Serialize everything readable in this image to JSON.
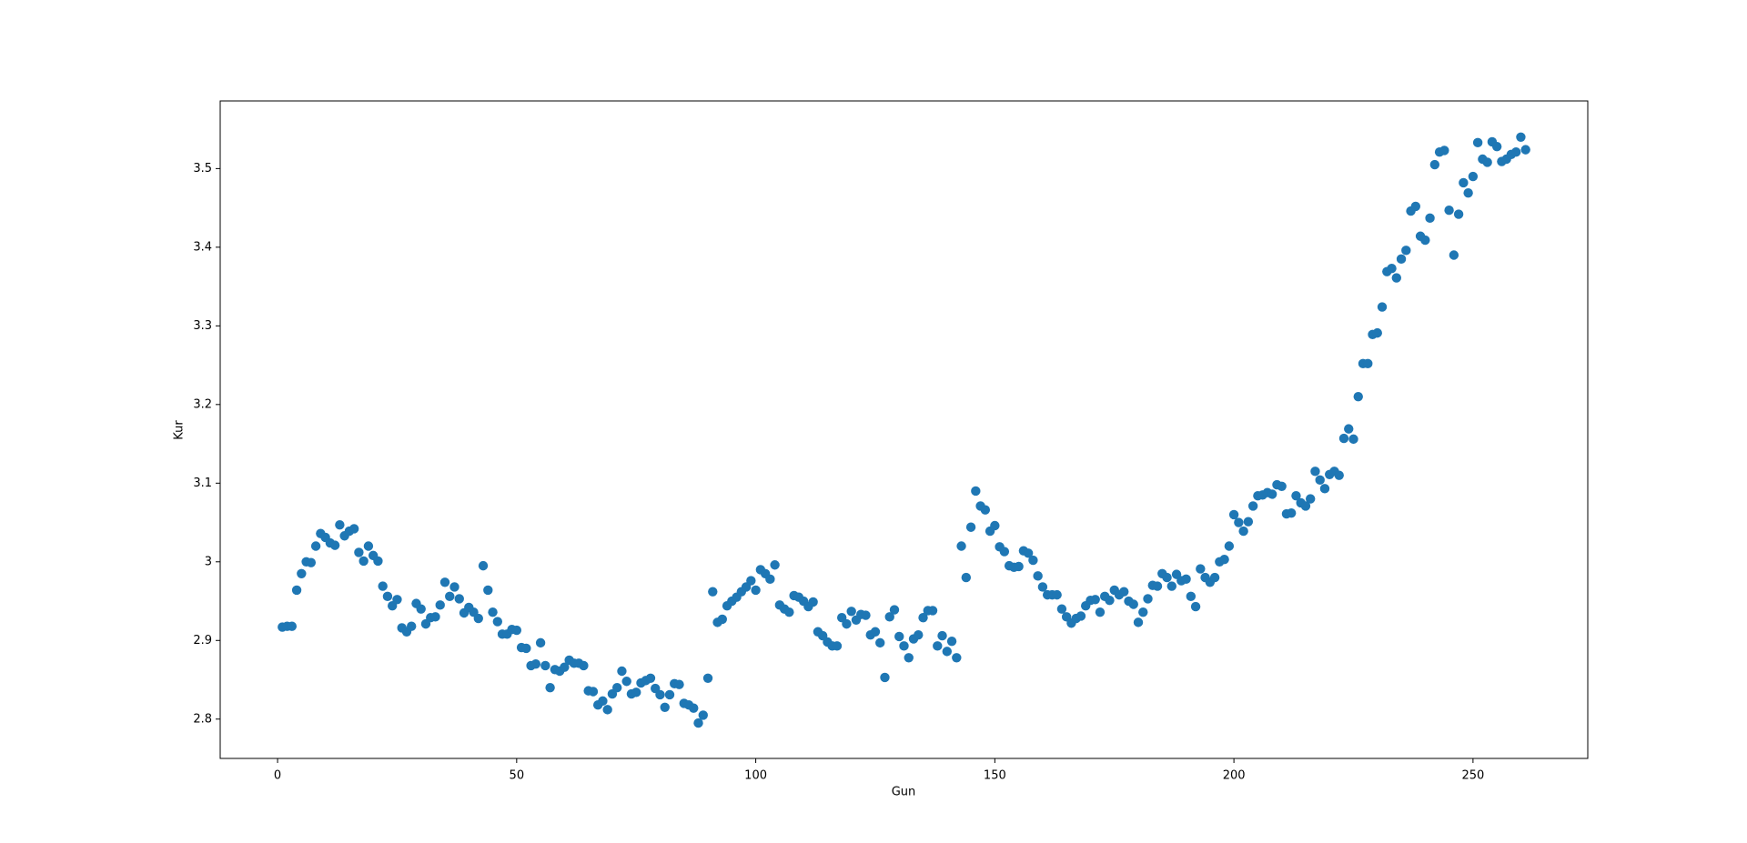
{
  "chart_data": {
    "type": "scatter",
    "x_label": "Gun",
    "y_label": "Kur",
    "color": "#1f77b4",
    "xlim": [
      -12,
      274
    ],
    "ylim": [
      2.75,
      3.586
    ],
    "xticks": [
      0,
      50,
      100,
      150,
      200,
      250
    ],
    "yticks": [
      2.8,
      2.9,
      3.0,
      3.1,
      3.2,
      3.3,
      3.4,
      3.5
    ],
    "x": [
      1,
      2,
      3,
      4,
      5,
      6,
      7,
      8,
      9,
      10,
      11,
      12,
      13,
      14,
      15,
      16,
      17,
      18,
      19,
      20,
      21,
      22,
      23,
      24,
      25,
      26,
      27,
      28,
      29,
      30,
      31,
      32,
      33,
      34,
      35,
      36,
      37,
      38,
      39,
      40,
      41,
      42,
      43,
      44,
      45,
      46,
      47,
      48,
      49,
      50,
      51,
      52,
      53,
      54,
      55,
      56,
      57,
      58,
      59,
      60,
      61,
      62,
      63,
      64,
      65,
      66,
      67,
      68,
      69,
      70,
      71,
      72,
      73,
      74,
      75,
      76,
      77,
      78,
      79,
      80,
      81,
      82,
      83,
      84,
      85,
      86,
      87,
      88,
      89,
      90,
      91,
      92,
      93,
      94,
      95,
      96,
      97,
      98,
      99,
      100,
      101,
      102,
      103,
      104,
      105,
      106,
      107,
      108,
      109,
      110,
      111,
      112,
      113,
      114,
      115,
      116,
      117,
      118,
      119,
      120,
      121,
      122,
      123,
      124,
      125,
      126,
      127,
      128,
      129,
      130,
      131,
      132,
      133,
      134,
      135,
      136,
      137,
      138,
      139,
      140,
      141,
      142,
      143,
      144,
      145,
      146,
      147,
      148,
      149,
      150,
      151,
      152,
      153,
      154,
      155,
      156,
      157,
      158,
      159,
      160,
      161,
      162,
      163,
      164,
      165,
      166,
      167,
      168,
      169,
      170,
      171,
      172,
      173,
      174,
      175,
      176,
      177,
      178,
      179,
      180,
      181,
      182,
      183,
      184,
      185,
      186,
      187,
      188,
      189,
      190,
      191,
      192,
      193,
      194,
      195,
      196,
      197,
      198,
      199,
      200,
      201,
      202,
      203,
      204,
      205,
      206,
      207,
      208,
      209,
      210,
      211,
      212,
      213,
      214,
      215,
      216,
      217,
      218,
      219,
      220,
      221,
      222,
      223,
      224,
      225,
      226,
      227,
      228,
      229,
      230,
      231,
      232,
      233,
      234,
      235,
      236,
      237,
      238,
      239,
      240,
      241,
      242,
      243,
      244,
      245,
      246,
      247,
      248,
      249,
      250,
      251,
      252,
      253,
      254,
      255,
      256,
      257,
      258,
      259,
      260,
      261
    ],
    "values": [
      2.917,
      2.918,
      2.918,
      2.964,
      2.985,
      3.0,
      2.999,
      3.02,
      3.036,
      3.031,
      3.024,
      3.021,
      3.047,
      3.033,
      3.039,
      3.042,
      3.012,
      3.001,
      3.02,
      3.008,
      3.001,
      2.969,
      2.956,
      2.944,
      2.952,
      2.916,
      2.911,
      2.918,
      2.947,
      2.94,
      2.921,
      2.929,
      2.93,
      2.945,
      2.974,
      2.956,
      2.968,
      2.953,
      2.935,
      2.942,
      2.936,
      2.928,
      2.995,
      2.964,
      2.936,
      2.924,
      2.908,
      2.908,
      2.914,
      2.913,
      2.891,
      2.89,
      2.868,
      2.87,
      2.897,
      2.868,
      2.84,
      2.863,
      2.861,
      2.866,
      2.875,
      2.871,
      2.871,
      2.868,
      2.836,
      2.835,
      2.818,
      2.823,
      2.812,
      2.832,
      2.84,
      2.861,
      2.848,
      2.832,
      2.834,
      2.846,
      2.849,
      2.852,
      2.839,
      2.831,
      2.815,
      2.831,
      2.845,
      2.844,
      2.82,
      2.818,
      2.814,
      2.795,
      2.805,
      2.852,
      2.962,
      2.923,
      2.927,
      2.944,
      2.95,
      2.955,
      2.962,
      2.968,
      2.976,
      2.964,
      2.99,
      2.985,
      2.978,
      2.996,
      2.945,
      2.94,
      2.936,
      2.957,
      2.955,
      2.95,
      2.943,
      2.949,
      2.911,
      2.906,
      2.898,
      2.893,
      2.893,
      2.929,
      2.921,
      2.937,
      2.926,
      2.933,
      2.932,
      2.907,
      2.911,
      2.897,
      2.853,
      2.93,
      2.939,
      2.905,
      2.893,
      2.878,
      2.902,
      2.907,
      2.929,
      2.938,
      2.938,
      2.893,
      2.906,
      2.886,
      2.899,
      2.878,
      3.02,
      2.98,
      3.044,
      3.09,
      3.071,
      3.066,
      3.039,
      3.046,
      3.019,
      3.013,
      2.995,
      2.993,
      2.994,
      3.014,
      3.011,
      3.002,
      2.982,
      2.968,
      2.958,
      2.958,
      2.958,
      2.94,
      2.93,
      2.922,
      2.928,
      2.931,
      2.944,
      2.951,
      2.952,
      2.936,
      2.956,
      2.951,
      2.964,
      2.958,
      2.962,
      2.95,
      2.946,
      2.923,
      2.936,
      2.953,
      2.97,
      2.969,
      2.985,
      2.98,
      2.969,
      2.984,
      2.976,
      2.978,
      2.956,
      2.943,
      2.991,
      2.98,
      2.974,
      2.98,
      3.0,
      3.003,
      3.02,
      3.06,
      3.05,
      3.039,
      3.051,
      3.071,
      3.084,
      3.085,
      3.088,
      3.086,
      3.098,
      3.096,
      3.061,
      3.062,
      3.084,
      3.075,
      3.071,
      3.08,
      3.115,
      3.104,
      3.093,
      3.111,
      3.115,
      3.11,
      3.157,
      3.169,
      3.156,
      3.21,
      3.252,
      3.252,
      3.289,
      3.291,
      3.324,
      3.369,
      3.373,
      3.361,
      3.385,
      3.396,
      3.446,
      3.452,
      3.414,
      3.409,
      3.437,
      3.505,
      3.521,
      3.523,
      3.447,
      3.39,
      3.442,
      3.482,
      3.469,
      3.49,
      3.533,
      3.512,
      3.508,
      3.534,
      3.528,
      3.509,
      3.512,
      3.518,
      3.521,
      3.54,
      3.524
    ]
  }
}
